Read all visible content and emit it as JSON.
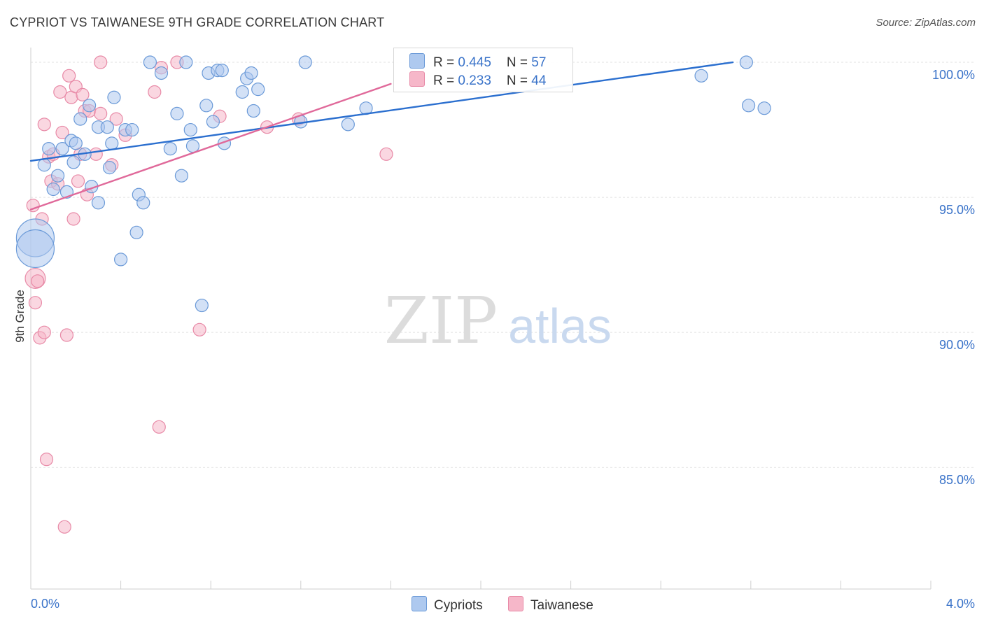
{
  "header": {
    "title": "CYPRIOT VS TAIWANESE 9TH GRADE CORRELATION CHART",
    "source": "Source: ZipAtlas.com"
  },
  "legend": {
    "rows": [
      {
        "r_label": "R = ",
        "r_value": "0.445",
        "n_label": "N = ",
        "n_value": "57"
      },
      {
        "r_label": "R = ",
        "r_value": "0.233",
        "n_label": "N = ",
        "n_value": "44"
      }
    ],
    "bottom": [
      {
        "label": "Cypriots"
      },
      {
        "label": "Taiwanese"
      }
    ]
  },
  "colors": {
    "cypriots_fill": "#aec9ef",
    "cypriots_stroke": "#6b9ad8",
    "cypriots_line": "#2b6fcf",
    "taiwanese_fill": "#f6b7c9",
    "taiwanese_stroke": "#e88aa7",
    "taiwanese_line": "#e0699a"
  },
  "watermark": {
    "zip": "ZIP",
    "atlas": "atlas"
  },
  "chart_data": {
    "type": "scatter",
    "title": "CYPRIOT VS TAIWANESE 9TH GRADE CORRELATION CHART",
    "xlabel": "",
    "ylabel": "9th Grade",
    "xlim": [
      0,
      4.0
    ],
    "ylim": [
      80.5,
      100.7
    ],
    "x_tick_labels": [
      "0.0%",
      "4.0%"
    ],
    "y_ticks": [
      85,
      90,
      95,
      100
    ],
    "y_tick_labels": [
      "85.0%",
      "90.0%",
      "95.0%",
      "100.0%"
    ],
    "series": [
      {
        "name": "Cypriots",
        "trend": {
          "x": [
            0.0,
            3.12
          ],
          "y": [
            96.35,
            100.0
          ]
        },
        "points": [
          [
            0.02,
            93.5,
            3.0
          ],
          [
            0.02,
            93.1,
            3.0
          ],
          [
            0.06,
            96.2,
            1
          ],
          [
            0.1,
            95.3,
            1
          ],
          [
            0.08,
            96.8,
            1
          ],
          [
            0.12,
            95.8,
            1
          ],
          [
            0.14,
            96.8,
            1
          ],
          [
            0.16,
            95.2,
            1
          ],
          [
            0.18,
            97.1,
            1
          ],
          [
            0.19,
            96.3,
            1
          ],
          [
            0.2,
            97.0,
            1
          ],
          [
            0.22,
            97.9,
            1
          ],
          [
            0.24,
            96.6,
            1
          ],
          [
            0.26,
            98.4,
            1
          ],
          [
            0.27,
            95.4,
            1
          ],
          [
            0.3,
            97.6,
            1
          ],
          [
            0.3,
            94.8,
            1
          ],
          [
            0.34,
            97.6,
            1
          ],
          [
            0.35,
            96.1,
            1
          ],
          [
            0.36,
            97.0,
            1
          ],
          [
            0.37,
            98.7,
            1
          ],
          [
            0.4,
            92.7,
            1
          ],
          [
            0.42,
            97.5,
            1
          ],
          [
            0.45,
            97.5,
            1
          ],
          [
            0.47,
            93.7,
            1
          ],
          [
            0.48,
            95.1,
            1
          ],
          [
            0.5,
            94.8,
            1
          ],
          [
            0.53,
            100.0,
            1
          ],
          [
            0.58,
            99.6,
            1
          ],
          [
            0.62,
            96.8,
            1
          ],
          [
            0.65,
            98.1,
            1
          ],
          [
            0.67,
            95.8,
            1
          ],
          [
            0.69,
            100.0,
            1
          ],
          [
            0.71,
            97.5,
            1
          ],
          [
            0.72,
            96.9,
            1
          ],
          [
            0.76,
            91.0,
            1
          ],
          [
            0.78,
            98.4,
            1
          ],
          [
            0.79,
            99.6,
            1
          ],
          [
            0.81,
            97.8,
            1
          ],
          [
            0.83,
            99.7,
            1
          ],
          [
            0.85,
            99.7,
            1
          ],
          [
            0.86,
            97.0,
            1
          ],
          [
            0.94,
            98.9,
            1
          ],
          [
            0.96,
            99.4,
            1
          ],
          [
            0.98,
            99.6,
            1
          ],
          [
            0.99,
            98.2,
            1
          ],
          [
            1.01,
            99.0,
            1
          ],
          [
            1.2,
            97.8,
            1
          ],
          [
            1.22,
            100.0,
            1
          ],
          [
            1.41,
            97.7,
            1
          ],
          [
            1.49,
            98.3,
            1
          ],
          [
            2.98,
            99.5,
            1
          ],
          [
            3.18,
            100.0,
            1
          ],
          [
            3.19,
            98.4,
            1
          ],
          [
            3.26,
            98.3,
            1
          ]
        ]
      },
      {
        "name": "Taiwanese",
        "trend": {
          "x": [
            0.0,
            1.6
          ],
          "y": [
            94.55,
            99.2
          ]
        },
        "points": [
          [
            0.01,
            94.7,
            1
          ],
          [
            0.02,
            92.0,
            1.6
          ],
          [
            0.02,
            91.1,
            1
          ],
          [
            0.03,
            91.9,
            1
          ],
          [
            0.04,
            89.8,
            1
          ],
          [
            0.05,
            94.2,
            1
          ],
          [
            0.06,
            97.7,
            1
          ],
          [
            0.06,
            90.0,
            1
          ],
          [
            0.07,
            85.3,
            1
          ],
          [
            0.08,
            96.5,
            1
          ],
          [
            0.09,
            95.6,
            1
          ],
          [
            0.1,
            96.6,
            1
          ],
          [
            0.12,
            95.5,
            1
          ],
          [
            0.13,
            98.9,
            1
          ],
          [
            0.14,
            97.4,
            1
          ],
          [
            0.15,
            82.8,
            1
          ],
          [
            0.16,
            89.9,
            1
          ],
          [
            0.17,
            99.5,
            1
          ],
          [
            0.18,
            98.7,
            1
          ],
          [
            0.19,
            94.2,
            1
          ],
          [
            0.2,
            99.1,
            1
          ],
          [
            0.21,
            95.6,
            1
          ],
          [
            0.22,
            96.6,
            1
          ],
          [
            0.23,
            98.8,
            1
          ],
          [
            0.24,
            98.2,
            1
          ],
          [
            0.25,
            95.1,
            1
          ],
          [
            0.26,
            98.2,
            1
          ],
          [
            0.29,
            96.6,
            1
          ],
          [
            0.31,
            98.1,
            1
          ],
          [
            0.31,
            100.0,
            1
          ],
          [
            0.36,
            96.2,
            1
          ],
          [
            0.38,
            97.9,
            1
          ],
          [
            0.42,
            97.3,
            1
          ],
          [
            0.55,
            98.9,
            1
          ],
          [
            0.57,
            86.5,
            1
          ],
          [
            0.58,
            99.8,
            1
          ],
          [
            0.65,
            100.0,
            1
          ],
          [
            0.75,
            90.1,
            1
          ],
          [
            0.84,
            98.0,
            1
          ],
          [
            1.05,
            97.6,
            1
          ],
          [
            1.19,
            97.9,
            1
          ],
          [
            1.58,
            96.6,
            1
          ]
        ]
      }
    ]
  }
}
